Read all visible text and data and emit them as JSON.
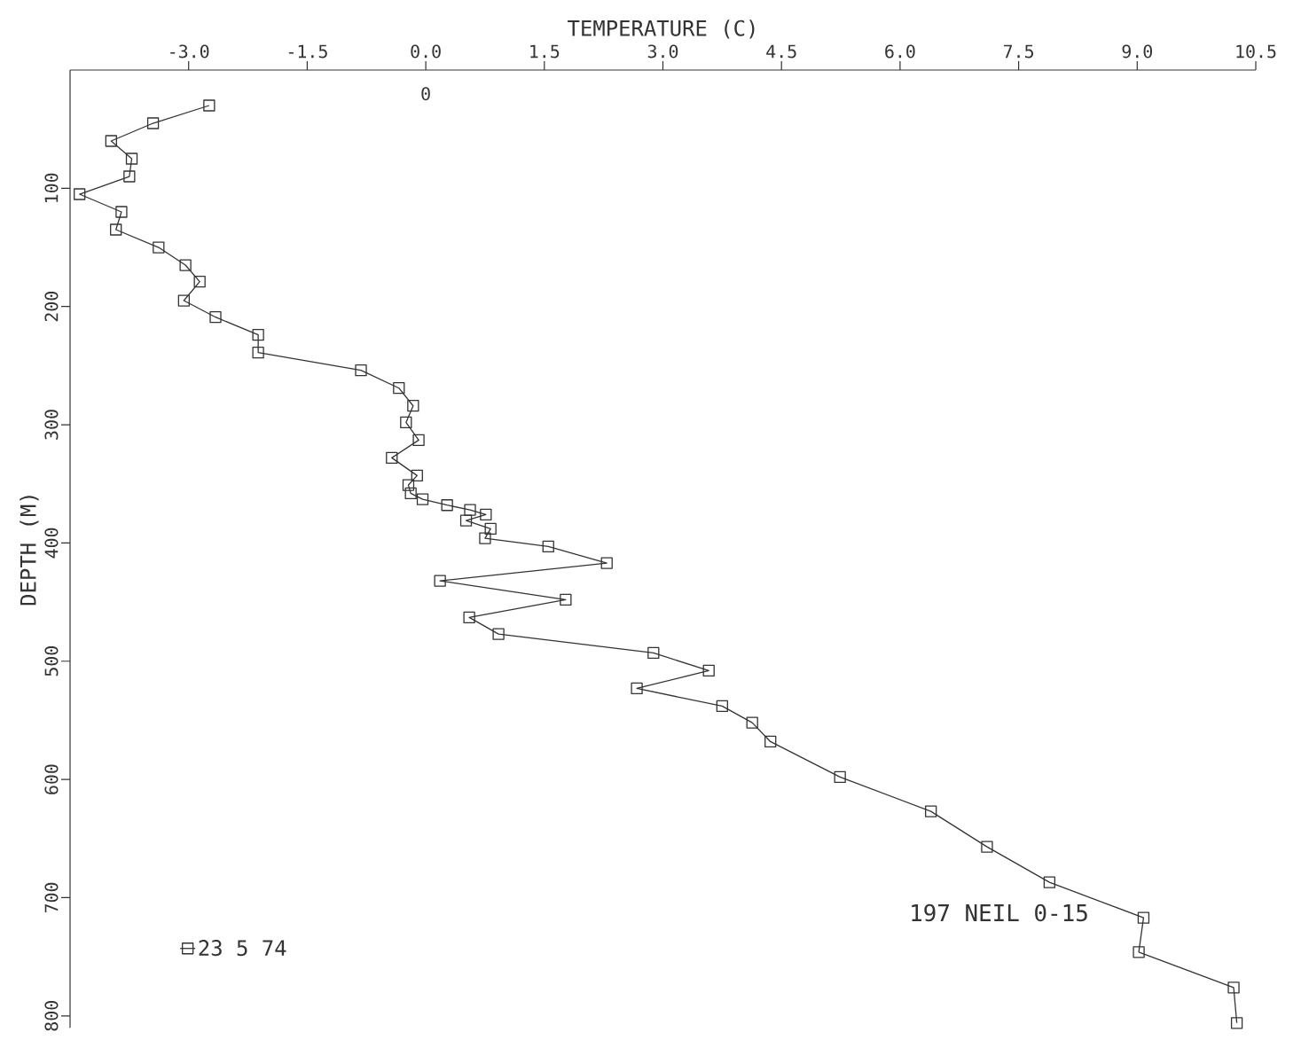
{
  "chart_data": {
    "type": "line",
    "xlabel": "TEMPERATURE (C)",
    "ylabel": "DEPTH (M)",
    "annotations": [
      "197  NEIL 0-15",
      "0"
    ],
    "xlim": [
      -4.5,
      10.5
    ],
    "xticks": [
      {
        "value": -3,
        "label": "-3.0"
      },
      -1.5,
      {
        "value": 0,
        "label": "0.0"
      },
      1.5,
      {
        "value": 3,
        "label": "3.0"
      },
      4.5,
      {
        "value": 6,
        "label": "6.0"
      },
      7.5,
      {
        "value": 9,
        "label": "9.0"
      },
      10.5
    ],
    "ylim": [
      810,
      0
    ],
    "yticks": [
      100,
      200,
      300,
      400,
      500,
      600,
      700,
      800
    ],
    "legend": "bottom left",
    "marker": "square",
    "line_style": "solid",
    "grid": false,
    "series": [
      {
        "name": "23  5 74",
        "color": "#333333",
        "x": [
          -2.74,
          -3.45,
          -3.98,
          -3.72,
          -3.75,
          -4.38,
          -3.85,
          -3.92,
          -3.38,
          -3.04,
          -2.86,
          -3.06,
          -2.66,
          -2.12,
          -2.12,
          -0.82,
          -0.34,
          -0.16,
          -0.25,
          -0.09,
          -0.43,
          -0.11,
          -0.22,
          -0.19,
          -0.04,
          0.27,
          0.56,
          0.76,
          0.51,
          0.82,
          0.75,
          1.55,
          2.29,
          0.18,
          1.77,
          0.55,
          0.92,
          2.88,
          3.58,
          2.67,
          3.75,
          4.13,
          4.36,
          5.24,
          6.39,
          7.1,
          7.89,
          9.08,
          9.02,
          10.22,
          10.26
        ],
        "values": [
          30,
          45,
          60,
          75,
          90,
          105,
          120,
          135,
          150,
          165,
          179,
          195,
          209,
          224,
          239,
          254,
          269,
          284,
          298,
          313,
          328,
          343,
          351,
          358,
          363,
          368,
          372,
          376,
          381,
          388,
          396,
          403,
          417,
          432,
          448,
          463,
          477,
          493,
          508,
          523,
          538,
          552,
          568,
          598,
          627,
          657,
          687,
          717,
          746,
          776,
          806
        ]
      }
    ]
  }
}
